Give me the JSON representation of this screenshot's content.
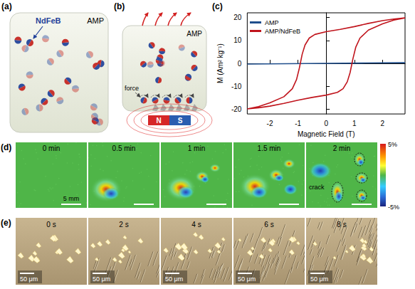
{
  "figure": {
    "panel_a": {
      "label": "(a)",
      "particle": "NdFeB",
      "matrix": "AMP"
    },
    "panel_b": {
      "label": "(b)",
      "matrix": "AMP",
      "force": "force",
      "magnet_poles": [
        "N",
        "S"
      ]
    },
    "panel_c": {
      "label": "(c)"
    },
    "panel_d": {
      "label": "(d)",
      "frames": [
        "0 min",
        "0.5 min",
        "1 min",
        "1.5 min",
        "2 min"
      ],
      "scale_bar": "5 mm",
      "annotation": "crack",
      "colorbar": {
        "range": [
          -5,
          5
        ],
        "ticks": [
          {
            "value": 5,
            "label": "5%"
          },
          {
            "value": -5,
            "label": "-5%"
          }
        ]
      }
    },
    "panel_e": {
      "label": "(e)",
      "frames": [
        "0 s",
        "2 s",
        "4 s",
        "6 s",
        "8 s"
      ],
      "scale_bar": "50 μm"
    }
  },
  "chart_data": {
    "type": "line",
    "xlabel": "Magnetic Field (T)",
    "ylabel": "M (Am² kg⁻¹)",
    "xlim": [
      -2.8,
      2.8
    ],
    "xticks": [
      -2,
      -1,
      0,
      1,
      2
    ],
    "ylim": [
      -22,
      22
    ],
    "yticks": [
      -20,
      -10,
      0,
      10,
      20
    ],
    "grid": false,
    "legend": "upper left",
    "series": [
      {
        "name": "AMP",
        "color": "#1f4e8c",
        "x": [
          -2.8,
          -1.4,
          0,
          1.4,
          2.8
        ],
        "values": [
          -0.3,
          -0.15,
          0,
          0.15,
          0.3
        ]
      },
      {
        "name": "AMP/NdFeB",
        "color": "#c0141c",
        "x": [
          2.8,
          2.4,
          2,
          1.5,
          1,
          0.5,
          0,
          -0.4,
          -0.6,
          -0.75,
          -0.85,
          -0.95,
          -1.05,
          -1.2,
          -1.5,
          -2,
          -2.4,
          -2.8,
          -2.4,
          -2,
          -1.5,
          -1,
          -0.5,
          0,
          0.4,
          0.6,
          0.75,
          0.85,
          0.95,
          1.05,
          1.2,
          1.5,
          2,
          2.4,
          2.8
        ],
        "values": [
          19.8,
          19.3,
          18.6,
          17.4,
          16,
          14.8,
          13.8,
          12.6,
          11,
          8,
          4,
          -2,
          -7,
          -11,
          -14.5,
          -17.2,
          -18.8,
          -19.8,
          -19.3,
          -18.6,
          -17.4,
          -16,
          -14.8,
          -13.8,
          -12.6,
          -11,
          -8,
          -4,
          2,
          7,
          11,
          14.5,
          17.2,
          18.8,
          19.8
        ]
      }
    ]
  }
}
